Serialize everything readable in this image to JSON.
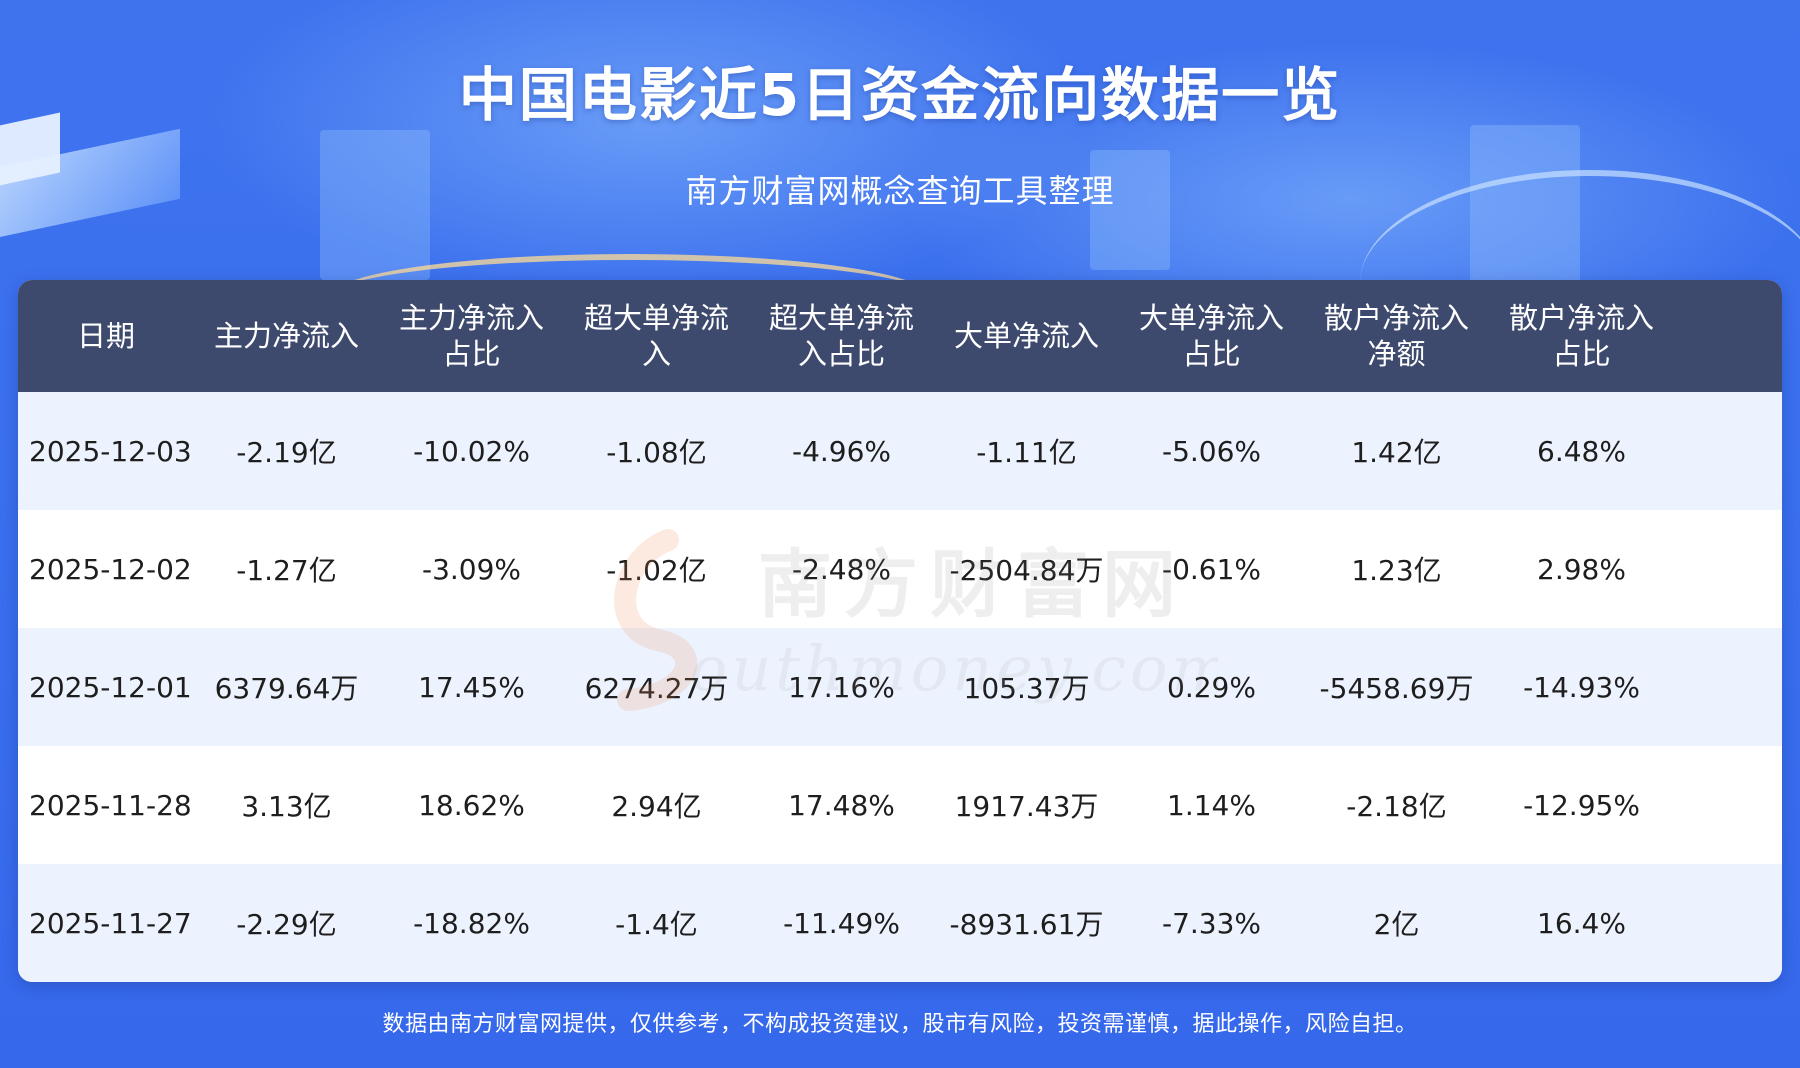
{
  "title": "中国电影近5日资金流向数据一览",
  "subtitle": "南方财富网概念查询工具整理",
  "footer": "数据由南方财富网提供，仅供参考，不构成投资建议，股市有风险，投资需谨慎，据此操作，风险自担。",
  "watermark": {
    "cn": "南方财富网",
    "en": "outhmoney.com"
  },
  "colors": {
    "background": "#3f73ee",
    "header_row": "#3d4a6e",
    "row_alt": "#edf3fe",
    "row_plain": "#ffffff",
    "text": "#1e1e1e"
  },
  "chart_data": {
    "type": "table",
    "columns": [
      [
        "日期"
      ],
      [
        "主力净流入"
      ],
      [
        "主力净流入",
        "占比"
      ],
      [
        "超大单净流",
        "入"
      ],
      [
        "超大单净流",
        "入占比"
      ],
      [
        "大单净流入"
      ],
      [
        "大单净流入",
        "占比"
      ],
      [
        "散户净流入",
        "净额"
      ],
      [
        "散户净流入",
        "占比"
      ]
    ],
    "rows": [
      [
        "2025-12-03",
        "-2.19亿",
        "-10.02%",
        "-1.08亿",
        "-4.96%",
        "-1.11亿",
        "-5.06%",
        "1.42亿",
        "6.48%"
      ],
      [
        "2025-12-02",
        "-1.27亿",
        "-3.09%",
        "-1.02亿",
        "-2.48%",
        "-2504.84万",
        "-0.61%",
        "1.23亿",
        "2.98%"
      ],
      [
        "2025-12-01",
        "6379.64万",
        "17.45%",
        "6274.27万",
        "17.16%",
        "105.37万",
        "0.29%",
        "-5458.69万",
        "-14.93%"
      ],
      [
        "2025-11-28",
        "3.13亿",
        "18.62%",
        "2.94亿",
        "17.48%",
        "1917.43万",
        "1.14%",
        "-2.18亿",
        "-12.95%"
      ],
      [
        "2025-11-27",
        "-2.29亿",
        "-18.82%",
        "-1.4亿",
        "-11.49%",
        "-8931.61万",
        "-7.33%",
        "2亿",
        "16.4%"
      ]
    ]
  }
}
